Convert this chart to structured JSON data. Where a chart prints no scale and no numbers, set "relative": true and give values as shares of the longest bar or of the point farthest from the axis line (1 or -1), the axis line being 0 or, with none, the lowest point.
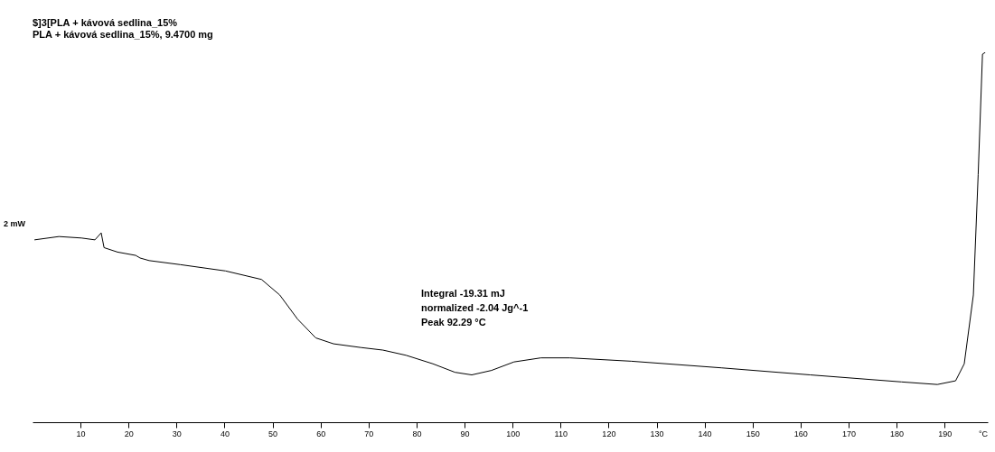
{
  "chart_data": {
    "type": "line",
    "title": "$]3[PLA + kávová sedlina_15%",
    "subtitle": "PLA + kávová sedlina_15%, 9.4700 mg",
    "xlabel": "°C",
    "ylabel": "2 mW",
    "relative": true,
    "xlim": [
      0,
      199
    ],
    "xticks": [
      10,
      20,
      30,
      40,
      50,
      60,
      70,
      80,
      90,
      100,
      110,
      120,
      130,
      140,
      150,
      160,
      170,
      180,
      190
    ],
    "grid": false,
    "x": [
      0.4,
      5.5,
      10.2,
      13,
      14.3,
      14.9,
      17.7,
      21.5,
      22.4,
      24.3,
      30.8,
      40.2,
      47.7,
      51.5,
      55.2,
      59,
      62.7,
      68.4,
      73,
      77.8,
      83.4,
      88,
      91.5,
      95.6,
      100.3,
      105.9,
      111.9,
      124.7,
      143.5,
      162,
      181,
      188.5,
      192.3,
      194.1,
      196,
      197,
      197.9,
      198.5
    ],
    "series": [
      {
        "color": "#000000",
        "values": [
          0.493,
          0.502,
          0.498,
          0.493,
          0.512,
          0.472,
          0.46,
          0.451,
          0.444,
          0.437,
          0.426,
          0.409,
          0.386,
          0.344,
          0.279,
          0.228,
          0.212,
          0.202,
          0.195,
          0.181,
          0.158,
          0.135,
          0.128,
          0.14,
          0.163,
          0.174,
          0.174,
          0.165,
          0.147,
          0.128,
          0.109,
          0.102,
          0.112,
          0.158,
          0.344,
          0.67,
          0.995,
          1
        ]
      }
    ],
    "annotations": [
      "Integral  -19.31 mJ",
      "normalized  -2.04 Jg^-1",
      "Peak  92.29 °C"
    ]
  }
}
